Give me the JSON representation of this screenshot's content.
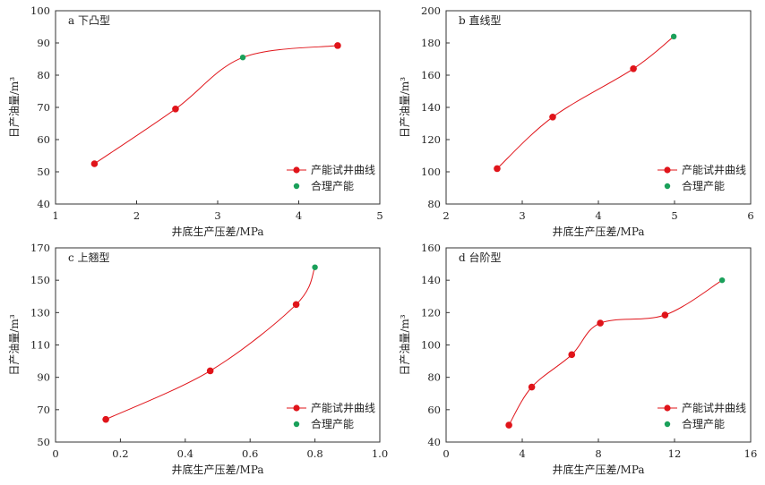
{
  "colors": {
    "curve": "#e0141a",
    "test_point": "#e0141a",
    "optimal_point": "#1aa05a",
    "axis": "#333333"
  },
  "chart_data": [
    {
      "type": "line",
      "title": "a 下凸型",
      "xlabel": "井底生产压差/MPa",
      "ylabel": "日产油量/m³",
      "xlim": [
        1,
        5
      ],
      "ylim": [
        40,
        100
      ],
      "xticks": [
        1,
        2,
        3,
        4,
        5
      ],
      "yticks": [
        40,
        50,
        60,
        70,
        80,
        90,
        100
      ],
      "legend_position": "bottom-right",
      "series": [
        {
          "name": "产能试井曲线",
          "role": "curve",
          "x": [
            1.48,
            2.48,
            3.31,
            4.48
          ],
          "y": [
            52.5,
            69.5,
            85.5,
            89.2
          ]
        },
        {
          "name": "合理产能",
          "role": "optimal",
          "x": [
            3.31
          ],
          "y": [
            85.5
          ]
        }
      ]
    },
    {
      "type": "line",
      "title": "b 直线型",
      "xlabel": "井底生产压差/MPa",
      "ylabel": "日产油量/m³",
      "xlim": [
        2,
        6
      ],
      "ylim": [
        80,
        200
      ],
      "xticks": [
        2,
        3,
        4,
        5,
        6
      ],
      "yticks": [
        80,
        100,
        120,
        140,
        160,
        180,
        200
      ],
      "legend_position": "bottom-right",
      "series": [
        {
          "name": "产能试井曲线",
          "role": "curve",
          "x": [
            2.67,
            3.4,
            4.46,
            4.99
          ],
          "y": [
            102,
            134,
            164,
            184
          ]
        },
        {
          "name": "合理产能",
          "role": "optimal",
          "x": [
            4.99
          ],
          "y": [
            184
          ]
        }
      ]
    },
    {
      "type": "line",
      "title": "c 上翘型",
      "xlabel": "井底生产压差/MPa",
      "ylabel": "日产油量/m³",
      "xlim": [
        0,
        1.0
      ],
      "ylim": [
        50,
        170
      ],
      "xticks": [
        0,
        0.2,
        0.4,
        0.6,
        0.8,
        1.0
      ],
      "xticklabels": [
        "0",
        "0.2",
        "0.4",
        "0.6",
        "0.8",
        "1.0"
      ],
      "yticks": [
        50,
        70,
        90,
        110,
        130,
        150,
        170
      ],
      "legend_position": "bottom-right",
      "series": [
        {
          "name": "产能试井曲线",
          "role": "curve",
          "x": [
            0.155,
            0.477,
            0.742,
            0.8
          ],
          "y": [
            64,
            94,
            135,
            158
          ]
        },
        {
          "name": "合理产能",
          "role": "optimal",
          "x": [
            0.8
          ],
          "y": [
            158
          ]
        }
      ]
    },
    {
      "type": "line",
      "title": "d 台阶型",
      "xlabel": "井底生产压差/MPa",
      "ylabel": "日产油量/m³",
      "xlim": [
        0,
        16
      ],
      "ylim": [
        40,
        160
      ],
      "xticks": [
        0,
        4,
        8,
        12,
        16
      ],
      "yticks": [
        40,
        60,
        80,
        100,
        120,
        140,
        160
      ],
      "legend_position": "bottom-right",
      "series": [
        {
          "name": "产能试井曲线",
          "role": "curve",
          "x": [
            3.3,
            4.5,
            6.6,
            8.1,
            11.5,
            14.5
          ],
          "y": [
            50.5,
            74,
            94,
            113.5,
            118.5,
            140
          ]
        },
        {
          "name": "合理产能",
          "role": "optimal",
          "x": [
            14.5
          ],
          "y": [
            140
          ]
        }
      ]
    }
  ]
}
